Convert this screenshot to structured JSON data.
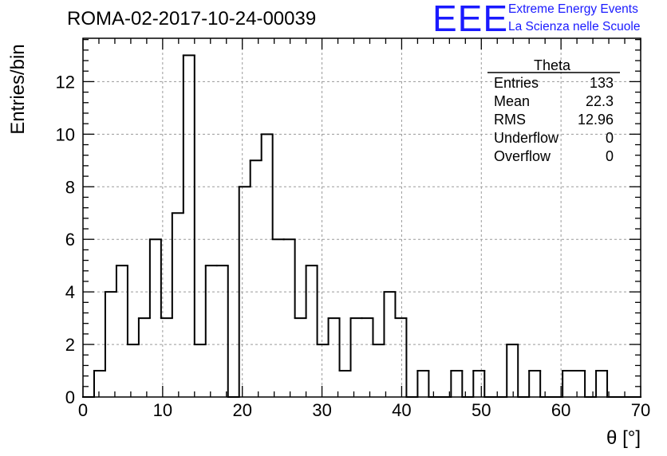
{
  "header": {
    "run_title": "ROMA-02-2017-10-24-00039",
    "logo_text": "EEE",
    "logo_line1": "Extreme Energy Events",
    "logo_line2": "La Scienza nelle Scuole",
    "logo_color": "#1a1aff"
  },
  "stats_box": {
    "title": "Theta",
    "rows": [
      {
        "label": "Entries",
        "value": "133"
      },
      {
        "label": "Mean",
        "value": "22.3"
      },
      {
        "label": "RMS",
        "value": "12.96"
      },
      {
        "label": "Underflow",
        "value": "0"
      },
      {
        "label": "Overflow",
        "value": "0"
      }
    ]
  },
  "chart_data": {
    "type": "bar",
    "histogram": true,
    "xlabel": "θ [°]",
    "ylabel": "Entries/bin",
    "xlim": [
      0,
      70
    ],
    "ylim": [
      0,
      13.65
    ],
    "bin_width": 1.4,
    "x_ticks": [
      "0",
      "10",
      "20",
      "30",
      "40",
      "50",
      "60",
      "70"
    ],
    "y_ticks": [
      "0",
      "2",
      "4",
      "6",
      "8",
      "10",
      "12"
    ],
    "grid": true,
    "line_color": "#000000",
    "values": [
      0,
      1,
      4,
      5,
      2,
      3,
      6,
      3,
      7,
      13,
      2,
      5,
      5,
      0,
      8,
      9,
      10,
      6,
      6,
      3,
      5,
      2,
      3,
      1,
      3,
      3,
      2,
      4,
      3,
      0,
      1,
      0,
      0,
      1,
      0,
      1,
      0,
      0,
      2,
      0,
      1,
      0,
      0,
      1,
      1,
      0,
      1,
      0,
      0,
      0
    ]
  }
}
